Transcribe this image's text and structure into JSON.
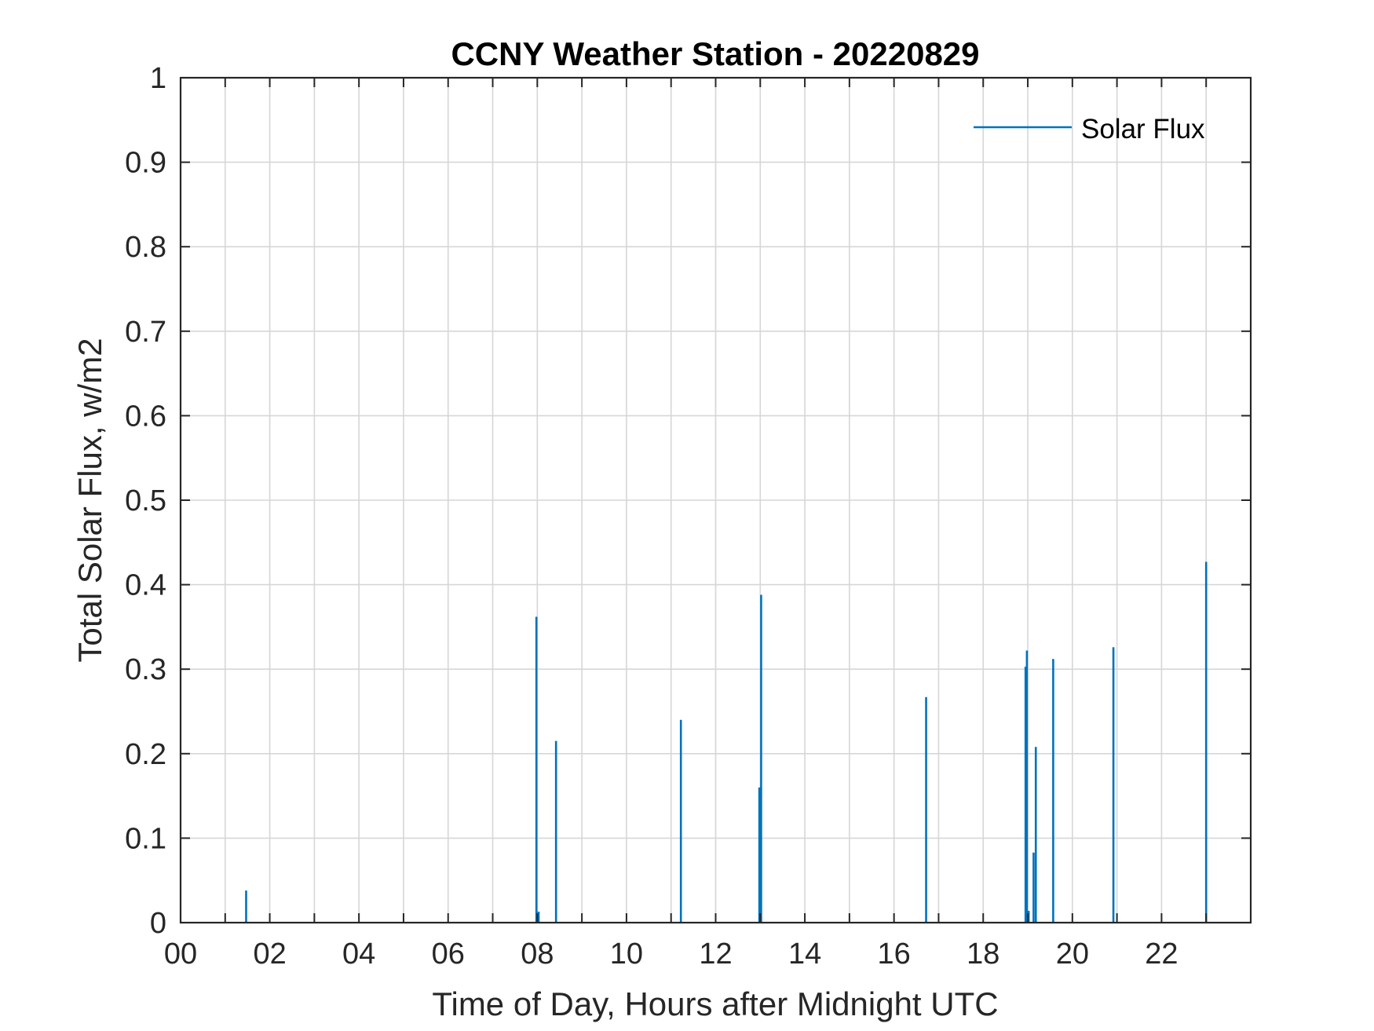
{
  "chart_data": {
    "type": "line",
    "title": "CCNY Weather Station - 20220829",
    "xlabel": "Time of Day, Hours after Midnight UTC",
    "ylabel": "Total Solar Flux, w/m2",
    "xlim": [
      0,
      24
    ],
    "ylim": [
      0,
      1
    ],
    "x_ticks": [
      0,
      2,
      4,
      6,
      8,
      10,
      12,
      14,
      16,
      18,
      20,
      22
    ],
    "x_tick_labels": [
      "00",
      "02",
      "04",
      "06",
      "08",
      "10",
      "12",
      "14",
      "16",
      "18",
      "20",
      "22"
    ],
    "x_minor_grid_step": 1,
    "y_ticks": [
      0,
      0.1,
      0.2,
      0.3,
      0.4,
      0.5,
      0.6,
      0.7,
      0.8,
      0.9,
      1
    ],
    "y_tick_labels": [
      "0",
      "0.1",
      "0.2",
      "0.3",
      "0.4",
      "0.5",
      "0.6",
      "0.7",
      "0.8",
      "0.9",
      "1"
    ],
    "grid": true,
    "legend": {
      "position": "top-right",
      "entries": [
        "Solar Flux"
      ]
    },
    "series": [
      {
        "name": "Solar Flux",
        "color": "#0072bd",
        "points": [
          {
            "x": 1.47,
            "y": 0.038
          },
          {
            "x": 7.98,
            "y": 0.362
          },
          {
            "x": 8.03,
            "y": 0.013
          },
          {
            "x": 8.42,
            "y": 0.215
          },
          {
            "x": 11.22,
            "y": 0.24
          },
          {
            "x": 12.98,
            "y": 0.16
          },
          {
            "x": 13.02,
            "y": 0.388
          },
          {
            "x": 16.72,
            "y": 0.267
          },
          {
            "x": 18.95,
            "y": 0.303
          },
          {
            "x": 18.98,
            "y": 0.322
          },
          {
            "x": 19.02,
            "y": 0.014
          },
          {
            "x": 19.13,
            "y": 0.083
          },
          {
            "x": 19.18,
            "y": 0.208
          },
          {
            "x": 19.57,
            "y": 0.312
          },
          {
            "x": 20.92,
            "y": 0.326
          },
          {
            "x": 23.0,
            "y": 0.427
          }
        ]
      }
    ]
  }
}
